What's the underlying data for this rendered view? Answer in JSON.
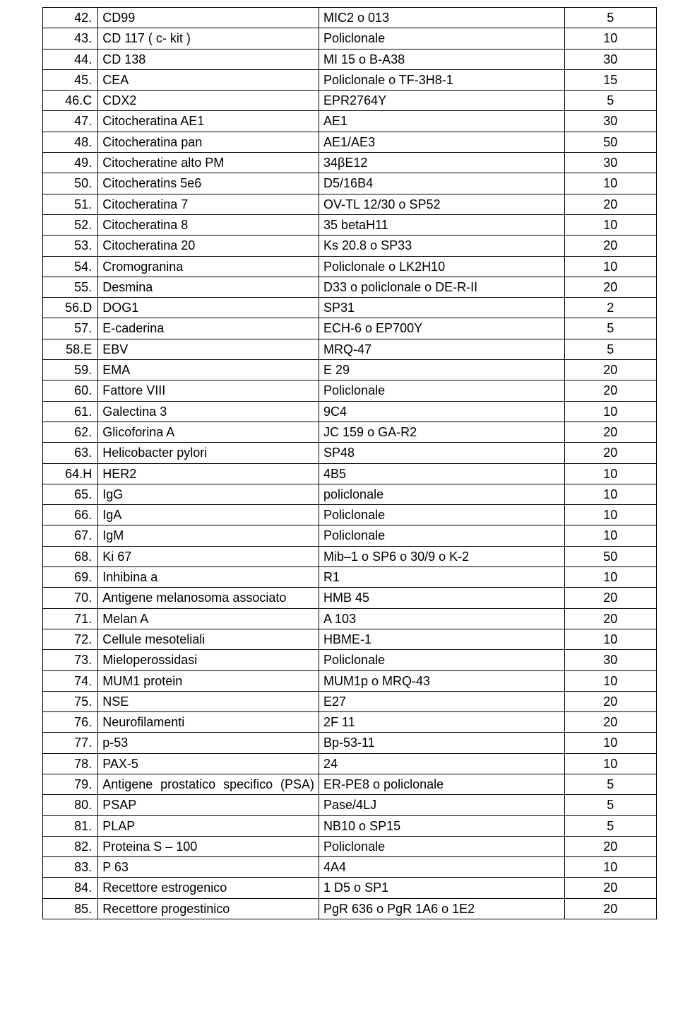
{
  "table": {
    "columns": [
      "num",
      "name",
      "code",
      "qty"
    ],
    "rows": [
      {
        "num": "42.",
        "name": "CD99",
        "code": "MIC2 o 013",
        "qty": "5"
      },
      {
        "num": "43.",
        "name": "CD 117 ( c- kit )",
        "code": "Policlonale",
        "qty": "10"
      },
      {
        "num": "44.",
        "name": "CD 138",
        "code": "MI 15 o B-A38",
        "qty": "30"
      },
      {
        "num": "45.",
        "name": "CEA",
        "code": "Policlonale o TF-3H8-1",
        "qty": "15"
      },
      {
        "num": "46.C",
        "name": "CDX2",
        "code": "EPR2764Y",
        "qty": "5"
      },
      {
        "num": "47.",
        "name": "Citocheratina AE1",
        "code": "AE1",
        "qty": "30"
      },
      {
        "num": "48.",
        "name": "Citocheratina pan",
        "code": "AE1/AE3",
        "qty": "50"
      },
      {
        "num": "49.",
        "name": "Citocheratine alto PM",
        "code": "34βE12",
        "qty": "30"
      },
      {
        "num": "50.",
        "name": "Citocheratins 5e6",
        "code": "D5/16B4",
        "qty": "10"
      },
      {
        "num": "51.",
        "name": "Citocheratina 7",
        "code": "OV-TL 12/30 o SP52",
        "qty": "20"
      },
      {
        "num": "52.",
        "name": "Citocheratina 8",
        "code": "35 betaH11",
        "qty": "10"
      },
      {
        "num": "53.",
        "name": "Citocheratina 20",
        "code": "Ks 20.8 o SP33",
        "qty": "20"
      },
      {
        "num": "54.",
        "name": "Cromogranina",
        "code": "Policlonale o LK2H10",
        "qty": "10"
      },
      {
        "num": "55.",
        "name": "Desmina",
        "code": "D33 o  policlonale o DE-R-II",
        "qty": "20"
      },
      {
        "num": "56.D",
        "name": "DOG1",
        "code": "SP31",
        "qty": "2"
      },
      {
        "num": "57.",
        "name": "E-caderina",
        "code": "ECH-6 o EP700Y",
        "qty": "5"
      },
      {
        "num": "58.E",
        "name": "EBV",
        "code": "MRQ-47",
        "qty": "5"
      },
      {
        "num": "59.",
        "name": "EMA",
        "code": "E 29",
        "qty": "20"
      },
      {
        "num": "60.",
        "name": "Fattore VIII",
        "code": "Policlonale",
        "qty": "20"
      },
      {
        "num": "61.",
        "name": "Galectina 3",
        "code": "9C4",
        "qty": "10"
      },
      {
        "num": "62.",
        "name": "Glicoforina A",
        "code": "JC 159 o GA-R2",
        "qty": "20"
      },
      {
        "num": "63.",
        "name": "Helicobacter pylori",
        "code": "SP48",
        "qty": "20"
      },
      {
        "num": "64.H",
        "name": "HER2",
        "code": "4B5",
        "qty": "10"
      },
      {
        "num": "65.",
        "name": "IgG",
        "code": "policlonale",
        "qty": "10"
      },
      {
        "num": "66.",
        "name": "IgA",
        "code": "Policlonale",
        "qty": "10"
      },
      {
        "num": "67.",
        "name": "IgM",
        "code": "Policlonale",
        "qty": "10"
      },
      {
        "num": "68.",
        "name": "Ki 67",
        "code": "Mib–1 o SP6 o 30/9 o K-2",
        "qty": "50"
      },
      {
        "num": "69.",
        "name": "Inhibina a",
        "code": "R1",
        "qty": "10"
      },
      {
        "num": "70.",
        "name": "Antigene melanosoma associato",
        "code": "HMB 45",
        "qty": "20"
      },
      {
        "num": "71.",
        "name": "Melan A",
        "code": "A 103",
        "qty": "20"
      },
      {
        "num": "72.",
        "name": "Cellule mesoteliali",
        "code": "HBME-1",
        "qty": "10"
      },
      {
        "num": "73.",
        "name": "Mieloperossidasi",
        "code": "Policlonale",
        "qty": "30"
      },
      {
        "num": "74.",
        "name": "MUM1 protein",
        "code": "MUM1p o MRQ-43",
        "qty": "10"
      },
      {
        "num": "75.",
        "name": "NSE",
        "code": "E27",
        "qty": "20"
      },
      {
        "num": "76.",
        "name": "Neurofilamenti",
        "code": "2F 11",
        "qty": "20"
      },
      {
        "num": "77.",
        "name": "p-53",
        "code": "Bp-53-11",
        "qty": "10"
      },
      {
        "num": "78.",
        "name": "PAX-5",
        "code": "24",
        "qty": "10"
      },
      {
        "num": "79.",
        "name": "Antigene prostatico specifico (PSA)",
        "name_justify": true,
        "code": "ER-PE8 o policlonale",
        "qty": "5"
      },
      {
        "num": "80.",
        "name": "PSAP",
        "code": "Pase/4LJ",
        "qty": "5"
      },
      {
        "num": "81.",
        "name": "PLAP",
        "code": "NB10 o SP15",
        "qty": "5"
      },
      {
        "num": "82.",
        "name": "Proteina S – 100",
        "code": "Policlonale",
        "qty": "20"
      },
      {
        "num": "83.",
        "name": "P 63",
        "code": "4A4",
        "qty": "10"
      },
      {
        "num": "84.",
        "name": "Recettore estrogenico",
        "code": "1 D5 o SP1",
        "qty": "20"
      },
      {
        "num": "85.",
        "name": "Recettore progestinico",
        "code": "PgR 636 o PgR 1A6 o 1E2",
        "qty": "20"
      }
    ]
  }
}
